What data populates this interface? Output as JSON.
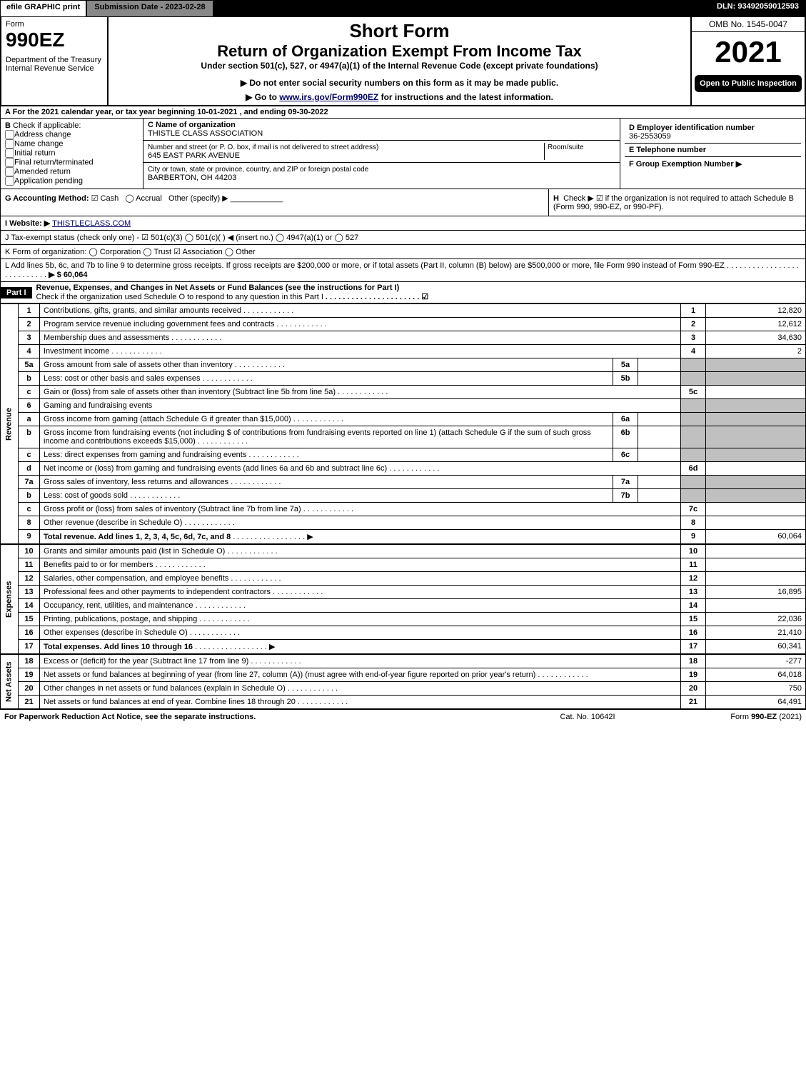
{
  "topbar": {
    "efile": "efile GRAPHIC print",
    "submission": "Submission Date - 2023-02-28",
    "dln": "DLN: 93492059012593"
  },
  "header": {
    "form_word": "Form",
    "form_no": "990EZ",
    "dept": "Department of the Treasury",
    "irs": "Internal Revenue Service",
    "short": "Short Form",
    "title": "Return of Organization Exempt From Income Tax",
    "under": "Under section 501(c), 527, or 4947(a)(1) of the Internal Revenue Code (except private foundations)",
    "donot": "Do not enter social security numbers on this form as it may be made public.",
    "goto_pre": "Go to ",
    "goto_link": "www.irs.gov/Form990EZ",
    "goto_post": " for instructions and the latest information.",
    "omb": "OMB No. 1545-0047",
    "year": "2021",
    "open": "Open to Public Inspection"
  },
  "A": "A  For the 2021 calendar year, or tax year beginning 10-01-2021 , and ending 09-30-2022",
  "B": {
    "label": "B",
    "check": "Check if applicable:",
    "opts": [
      "Address change",
      "Name change",
      "Initial return",
      "Final return/terminated",
      "Amended return",
      "Application pending"
    ]
  },
  "C": {
    "label": "C Name of organization",
    "name": "THISTLE CLASS ASSOCIATION",
    "street_lbl": "Number and street (or P. O. box, if mail is not delivered to street address)",
    "street": "645 EAST PARK AVENUE",
    "room_lbl": "Room/suite",
    "city_lbl": "City or town, state or province, country, and ZIP or foreign postal code",
    "city": "BARBERTON, OH  44203"
  },
  "D": {
    "label": "D Employer identification number",
    "val": "36-2553059"
  },
  "E": "E Telephone number",
  "F": "F Group Exemption Number  ▶",
  "G": {
    "label": "G Accounting Method:",
    "cash": "Cash",
    "accrual": "Accrual",
    "other": "Other (specify) ▶"
  },
  "H": {
    "label": "H",
    "text": "Check ▶ ☑ if the organization is not required to attach Schedule B (Form 990, 990-EZ, or 990-PF)."
  },
  "I": {
    "label": "I Website: ▶",
    "val": "THISTLECLASS.COM"
  },
  "J": "J Tax-exempt status (check only one) - ☑ 501(c)(3)  ◯ 501(c)(  ) ◀ (insert no.)  ◯ 4947(a)(1) or  ◯ 527",
  "K": "K Form of organization:   ◯ Corporation   ◯ Trust   ☑ Association   ◯ Other",
  "L": {
    "text": "L Add lines 5b, 6c, and 7b to line 9 to determine gross receipts. If gross receipts are $200,000 or more, or if total assets (Part II, column (B) below) are $500,000 or more, file Form 990 instead of Form 990-EZ",
    "val": "▶ $ 60,064"
  },
  "part1": {
    "label": "Part I",
    "title": "Revenue, Expenses, and Changes in Net Assets or Fund Balances (see the instructions for Part I)",
    "sub": "Check if the organization used Schedule O to respond to any question in this Part I"
  },
  "sections": {
    "revenue": "Revenue",
    "expenses": "Expenses",
    "netassets": "Net Assets"
  },
  "lines": [
    {
      "n": "1",
      "d": "Contributions, gifts, grants, and similar amounts received",
      "ln": "1",
      "amt": "12,820"
    },
    {
      "n": "2",
      "d": "Program service revenue including government fees and contracts",
      "ln": "2",
      "amt": "12,612"
    },
    {
      "n": "3",
      "d": "Membership dues and assessments",
      "ln": "3",
      "amt": "34,630"
    },
    {
      "n": "4",
      "d": "Investment income",
      "ln": "4",
      "amt": "2"
    },
    {
      "n": "5a",
      "d": "Gross amount from sale of assets other than inventory",
      "ib": "5a",
      "iv": "",
      "grey": true
    },
    {
      "n": "b",
      "d": "Less: cost or other basis and sales expenses",
      "ib": "5b",
      "iv": "",
      "grey": true
    },
    {
      "n": "c",
      "d": "Gain or (loss) from sale of assets other than inventory (Subtract line 5b from line 5a)",
      "ln": "5c",
      "amt": ""
    },
    {
      "n": "6",
      "d": "Gaming and fundraising events",
      "grey": true
    },
    {
      "n": "a",
      "d": "Gross income from gaming (attach Schedule G if greater than $15,000)",
      "ib": "6a",
      "iv": "",
      "grey": true
    },
    {
      "n": "b",
      "d": "Gross income from fundraising events (not including $                     of contributions from fundraising events reported on line 1) (attach Schedule G if the sum of such gross income and contributions exceeds $15,000)",
      "ib": "6b",
      "iv": "",
      "grey": true
    },
    {
      "n": "c",
      "d": "Less: direct expenses from gaming and fundraising events",
      "ib": "6c",
      "iv": "",
      "grey": true
    },
    {
      "n": "d",
      "d": "Net income or (loss) from gaming and fundraising events (add lines 6a and 6b and subtract line 6c)",
      "ln": "6d",
      "amt": ""
    },
    {
      "n": "7a",
      "d": "Gross sales of inventory, less returns and allowances",
      "ib": "7a",
      "iv": "",
      "grey": true
    },
    {
      "n": "b",
      "d": "Less: cost of goods sold",
      "ib": "7b",
      "iv": "",
      "grey": true
    },
    {
      "n": "c",
      "d": "Gross profit or (loss) from sales of inventory (Subtract line 7b from line 7a)",
      "ln": "7c",
      "amt": ""
    },
    {
      "n": "8",
      "d": "Other revenue (describe in Schedule O)",
      "ln": "8",
      "amt": ""
    },
    {
      "n": "9",
      "d": "Total revenue. Add lines 1, 2, 3, 4, 5c, 6d, 7c, and 8",
      "ln": "9",
      "amt": "60,064",
      "bold": true,
      "arrow": true
    }
  ],
  "exp": [
    {
      "n": "10",
      "d": "Grants and similar amounts paid (list in Schedule O)",
      "ln": "10",
      "amt": ""
    },
    {
      "n": "11",
      "d": "Benefits paid to or for members",
      "ln": "11",
      "amt": ""
    },
    {
      "n": "12",
      "d": "Salaries, other compensation, and employee benefits",
      "ln": "12",
      "amt": ""
    },
    {
      "n": "13",
      "d": "Professional fees and other payments to independent contractors",
      "ln": "13",
      "amt": "16,895"
    },
    {
      "n": "14",
      "d": "Occupancy, rent, utilities, and maintenance",
      "ln": "14",
      "amt": ""
    },
    {
      "n": "15",
      "d": "Printing, publications, postage, and shipping",
      "ln": "15",
      "amt": "22,036"
    },
    {
      "n": "16",
      "d": "Other expenses (describe in Schedule O)",
      "ln": "16",
      "amt": "21,410"
    },
    {
      "n": "17",
      "d": "Total expenses. Add lines 10 through 16",
      "ln": "17",
      "amt": "60,341",
      "bold": true,
      "arrow": true
    }
  ],
  "na": [
    {
      "n": "18",
      "d": "Excess or (deficit) for the year (Subtract line 17 from line 9)",
      "ln": "18",
      "amt": "-277"
    },
    {
      "n": "19",
      "d": "Net assets or fund balances at beginning of year (from line 27, column (A)) (must agree with end-of-year figure reported on prior year's return)",
      "ln": "19",
      "amt": "64,018"
    },
    {
      "n": "20",
      "d": "Other changes in net assets or fund balances (explain in Schedule O)",
      "ln": "20",
      "amt": "750"
    },
    {
      "n": "21",
      "d": "Net assets or fund balances at end of year. Combine lines 18 through 20",
      "ln": "21",
      "amt": "64,491"
    }
  ],
  "footer": {
    "left": "For Paperwork Reduction Act Notice, see the separate instructions.",
    "mid": "Cat. No. 10642I",
    "right": "Form 990-EZ (2021)"
  }
}
